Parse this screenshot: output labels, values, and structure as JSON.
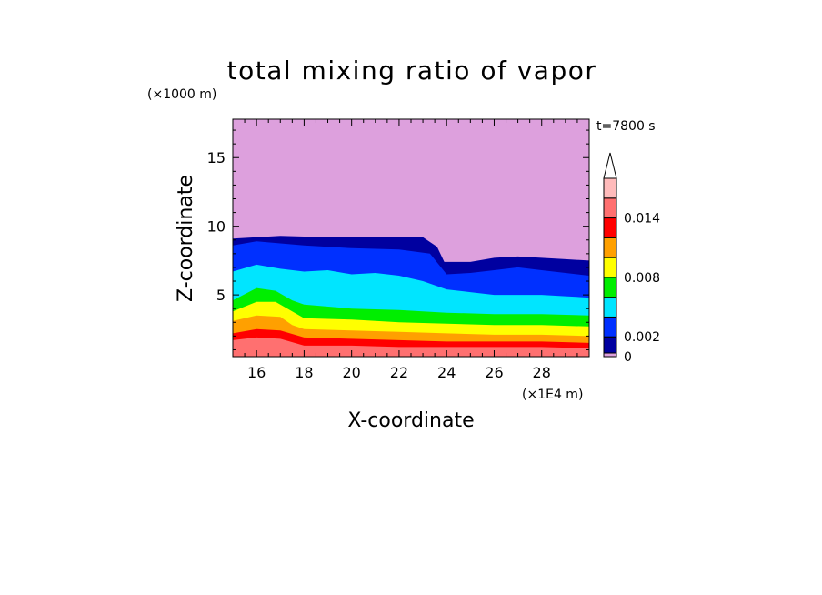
{
  "chart_data": {
    "type": "heatmap",
    "title": "total mixing ratio of vapor",
    "xlabel": "X-coordinate",
    "ylabel": "Z-coordinate",
    "x_unit": "(×1E4 m)",
    "y_unit": "(×1000 m)",
    "time_label": "t=7800 s",
    "xlim": [
      15,
      30
    ],
    "ylim": [
      0.5,
      17.8
    ],
    "x_ticks": [
      16,
      18,
      20,
      22,
      24,
      26,
      28
    ],
    "y_ticks": [
      5,
      10,
      15
    ],
    "colorbar_labels": [
      {
        "label": "0",
        "value": 0
      },
      {
        "label": "0.002",
        "value": 0.002
      },
      {
        "label": "0.008",
        "value": 0.008
      },
      {
        "label": "0.014",
        "value": 0.014
      }
    ],
    "levels": [
      0,
      0.002,
      0.004,
      0.006,
      0.008,
      0.01,
      0.012,
      0.014,
      0.016,
      0.018
    ],
    "colors": [
      "#dda0dd",
      "#0000a0",
      "#0030ff",
      "#00e5ff",
      "#00ee00",
      "#ffff00",
      "#ffa000",
      "#ff0000",
      "#ff7070",
      "#ffbbbb"
    ],
    "extend": "max",
    "contours": [
      {
        "level": 0.0,
        "color": "#0000a0",
        "boundary": [
          [
            15,
            9.1
          ],
          [
            17,
            9.3
          ],
          [
            19,
            9.2
          ],
          [
            21,
            9.2
          ],
          [
            23,
            9.2
          ],
          [
            23.6,
            8.5
          ],
          [
            23.9,
            7.4
          ],
          [
            25,
            7.4
          ],
          [
            26,
            7.7
          ],
          [
            27,
            7.8
          ],
          [
            28,
            7.7
          ],
          [
            29,
            7.6
          ],
          [
            30,
            7.5
          ]
        ]
      },
      {
        "level": 0.002,
        "color": "#0030ff",
        "boundary": [
          [
            15,
            8.6
          ],
          [
            16,
            8.9
          ],
          [
            18,
            8.6
          ],
          [
            20,
            8.4
          ],
          [
            22,
            8.3
          ],
          [
            23.3,
            8.0
          ],
          [
            24,
            6.5
          ],
          [
            25,
            6.6
          ],
          [
            26,
            6.8
          ],
          [
            27,
            7.0
          ],
          [
            28,
            6.8
          ],
          [
            29,
            6.6
          ],
          [
            30,
            6.4
          ]
        ]
      },
      {
        "level": 0.004,
        "color": "#00e5ff",
        "boundary": [
          [
            15,
            6.7
          ],
          [
            16,
            7.2
          ],
          [
            17,
            6.9
          ],
          [
            18,
            6.7
          ],
          [
            19,
            6.8
          ],
          [
            20,
            6.5
          ],
          [
            21,
            6.6
          ],
          [
            22,
            6.4
          ],
          [
            23,
            6.0
          ],
          [
            24,
            5.4
          ],
          [
            25,
            5.2
          ],
          [
            26,
            5.0
          ],
          [
            27,
            5.0
          ],
          [
            28,
            5.0
          ],
          [
            29,
            4.9
          ],
          [
            30,
            4.8
          ]
        ]
      },
      {
        "level": 0.006,
        "color": "#00ee00",
        "boundary": [
          [
            15,
            4.6
          ],
          [
            16,
            5.5
          ],
          [
            16.8,
            5.3
          ],
          [
            17.5,
            4.6
          ],
          [
            18,
            4.3
          ],
          [
            20,
            4.0
          ],
          [
            22,
            3.9
          ],
          [
            24,
            3.7
          ],
          [
            26,
            3.6
          ],
          [
            28,
            3.6
          ],
          [
            30,
            3.5
          ]
        ]
      },
      {
        "level": 0.008,
        "color": "#ffff00",
        "boundary": [
          [
            15,
            3.8
          ],
          [
            16,
            4.5
          ],
          [
            16.8,
            4.5
          ],
          [
            17.5,
            3.8
          ],
          [
            18,
            3.3
          ],
          [
            20,
            3.2
          ],
          [
            22,
            3.0
          ],
          [
            24,
            2.9
          ],
          [
            26,
            2.8
          ],
          [
            28,
            2.8
          ],
          [
            30,
            2.7
          ]
        ]
      },
      {
        "level": 0.01,
        "color": "#ffa000",
        "boundary": [
          [
            15,
            3.1
          ],
          [
            16,
            3.5
          ],
          [
            17,
            3.4
          ],
          [
            17.5,
            2.8
          ],
          [
            18,
            2.5
          ],
          [
            20,
            2.4
          ],
          [
            22,
            2.3
          ],
          [
            24,
            2.2
          ],
          [
            26,
            2.1
          ],
          [
            28,
            2.1
          ],
          [
            30,
            2.0
          ]
        ]
      },
      {
        "level": 0.012,
        "color": "#ff0000",
        "boundary": [
          [
            15,
            2.2
          ],
          [
            16,
            2.5
          ],
          [
            17,
            2.4
          ],
          [
            18,
            1.9
          ],
          [
            20,
            1.8
          ],
          [
            22,
            1.7
          ],
          [
            24,
            1.6
          ],
          [
            26,
            1.6
          ],
          [
            28,
            1.6
          ],
          [
            30,
            1.5
          ]
        ]
      },
      {
        "level": 0.014,
        "color": "#ff7070",
        "boundary": [
          [
            15,
            1.7
          ],
          [
            16,
            1.9
          ],
          [
            17,
            1.8
          ],
          [
            18,
            1.3
          ],
          [
            20,
            1.3
          ],
          [
            22,
            1.2
          ],
          [
            24,
            1.2
          ],
          [
            26,
            1.2
          ],
          [
            28,
            1.2
          ],
          [
            30,
            1.1
          ]
        ]
      }
    ]
  }
}
